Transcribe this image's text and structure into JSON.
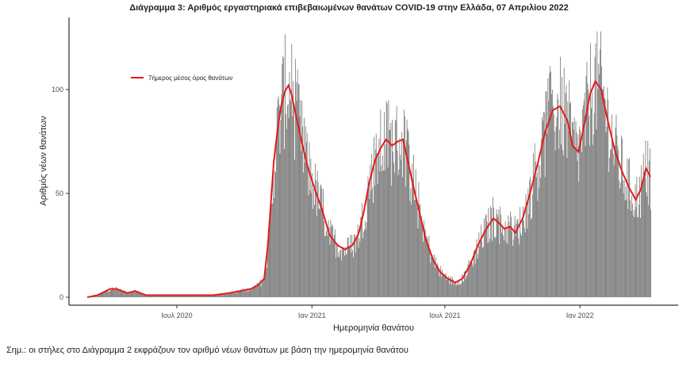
{
  "header": {
    "title": "Διάγραμμα 3: Αριθμός εργαστηριακά επιβεβαιωμένων θανάτων COVID-19 στην Ελλάδα, 07 Απριλίου 2022"
  },
  "footer": {
    "note": "Σημ.: οι στήλες στο Διάγραμμα 2 εκφράζουν τον αριθμό νέων θανάτων με βάση την ημερομηνία θανάτου"
  },
  "colors": {
    "bars": "#808080",
    "line": "#e41a1c",
    "axis": "#000000"
  },
  "chart_data": {
    "type": "bar",
    "title": "Διάγραμμα 3: Αριθμός εργαστηριακά επιβεβαιωμένων θανάτων COVID-19 στην Ελλάδα, 07 Απριλίου 2022",
    "xlabel": "Ημερομηνία θανάτου",
    "ylabel": "Αριθμός νέων θανάτων",
    "x_range": [
      "2020-03-01",
      "2022-04-07"
    ],
    "ylim": [
      0,
      130
    ],
    "y_ticks": [
      0,
      50,
      100
    ],
    "x_ticks": [
      {
        "date": "2020-07-01",
        "label": "Ιουλ 2020"
      },
      {
        "date": "2021-01-01",
        "label": "Ιαν 2021"
      },
      {
        "date": "2021-07-01",
        "label": "Ιουλ 2021"
      },
      {
        "date": "2022-01-01",
        "label": "Ιαν 2022"
      }
    ],
    "grid": false,
    "legend": {
      "position": "top-left",
      "entries": [
        "7ήμερος μέσος όρος θανάτων"
      ]
    },
    "series": [
      {
        "name": "7ήμερος μέσος όρος θανάτων",
        "type": "line",
        "note": "7-day rolling average; daily bars follow this level with noise",
        "points": [
          [
            "2020-03-01",
            0
          ],
          [
            "2020-03-15",
            1
          ],
          [
            "2020-04-01",
            4
          ],
          [
            "2020-04-10",
            4
          ],
          [
            "2020-04-25",
            2
          ],
          [
            "2020-05-05",
            3
          ],
          [
            "2020-05-20",
            1
          ],
          [
            "2020-06-10",
            1
          ],
          [
            "2020-07-01",
            1
          ],
          [
            "2020-08-01",
            1
          ],
          [
            "2020-08-20",
            1
          ],
          [
            "2020-09-10",
            2
          ],
          [
            "2020-09-25",
            3
          ],
          [
            "2020-10-10",
            4
          ],
          [
            "2020-10-20",
            6
          ],
          [
            "2020-10-28",
            9
          ],
          [
            "2020-11-02",
            25
          ],
          [
            "2020-11-06",
            45
          ],
          [
            "2020-11-10",
            65
          ],
          [
            "2020-11-15",
            80
          ],
          [
            "2020-11-20",
            92
          ],
          [
            "2020-11-25",
            99
          ],
          [
            "2020-11-30",
            102
          ],
          [
            "2020-12-04",
            98
          ],
          [
            "2020-12-10",
            88
          ],
          [
            "2020-12-18",
            75
          ],
          [
            "2020-12-26",
            63
          ],
          [
            "2021-01-05",
            52
          ],
          [
            "2021-01-15",
            42
          ],
          [
            "2021-01-25",
            30
          ],
          [
            "2021-02-05",
            25
          ],
          [
            "2021-02-15",
            23
          ],
          [
            "2021-02-25",
            25
          ],
          [
            "2021-03-05",
            30
          ],
          [
            "2021-03-12",
            40
          ],
          [
            "2021-03-20",
            55
          ],
          [
            "2021-03-28",
            66
          ],
          [
            "2021-04-05",
            72
          ],
          [
            "2021-04-12",
            76
          ],
          [
            "2021-04-20",
            73
          ],
          [
            "2021-04-28",
            75
          ],
          [
            "2021-05-05",
            76
          ],
          [
            "2021-05-12",
            65
          ],
          [
            "2021-05-20",
            52
          ],
          [
            "2021-05-28",
            40
          ],
          [
            "2021-06-05",
            28
          ],
          [
            "2021-06-15",
            18
          ],
          [
            "2021-06-25",
            12
          ],
          [
            "2021-07-05",
            9
          ],
          [
            "2021-07-15",
            7
          ],
          [
            "2021-07-25",
            9
          ],
          [
            "2021-08-05",
            16
          ],
          [
            "2021-08-15",
            25
          ],
          [
            "2021-08-25",
            32
          ],
          [
            "2021-09-05",
            38
          ],
          [
            "2021-09-12",
            36
          ],
          [
            "2021-09-20",
            33
          ],
          [
            "2021-09-28",
            34
          ],
          [
            "2021-10-05",
            31
          ],
          [
            "2021-10-15",
            38
          ],
          [
            "2021-10-25",
            50
          ],
          [
            "2021-11-05",
            65
          ],
          [
            "2021-11-15",
            80
          ],
          [
            "2021-11-25",
            90
          ],
          [
            "2021-12-05",
            92
          ],
          [
            "2021-12-15",
            85
          ],
          [
            "2021-12-22",
            73
          ],
          [
            "2021-12-30",
            70
          ],
          [
            "2022-01-08",
            85
          ],
          [
            "2022-01-15",
            98
          ],
          [
            "2022-01-22",
            104
          ],
          [
            "2022-01-30",
            100
          ],
          [
            "2022-02-08",
            85
          ],
          [
            "2022-02-18",
            70
          ],
          [
            "2022-02-28",
            60
          ],
          [
            "2022-03-10",
            52
          ],
          [
            "2022-03-18",
            47
          ],
          [
            "2022-03-25",
            52
          ],
          [
            "2022-04-01",
            62
          ],
          [
            "2022-04-07",
            58
          ]
        ]
      }
    ]
  }
}
